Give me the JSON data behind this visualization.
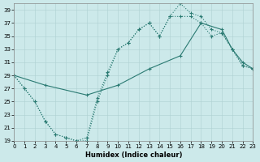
{
  "xlabel": "Humidex (Indice chaleur)",
  "bg_color": "#cce9ea",
  "line_color": "#2a7a72",
  "grid_color": "#aed0d2",
  "xlim": [
    0,
    23
  ],
  "ylim": [
    19,
    40
  ],
  "yticks": [
    19,
    21,
    23,
    25,
    27,
    29,
    31,
    33,
    35,
    37,
    39
  ],
  "xticks": [
    0,
    1,
    2,
    3,
    4,
    5,
    6,
    7,
    8,
    9,
    10,
    11,
    12,
    13,
    14,
    15,
    16,
    17,
    18,
    19,
    20,
    21,
    22,
    23
  ],
  "line1_x": [
    0,
    1,
    2,
    3,
    4,
    5,
    6,
    7,
    8,
    9,
    10,
    11,
    12,
    13,
    14,
    15,
    16,
    17,
    18,
    19,
    20,
    21,
    22,
    23
  ],
  "line1_y": [
    29,
    27,
    25,
    22,
    20,
    19.5,
    19,
    19,
    25,
    29,
    33,
    34,
    36,
    37,
    35,
    38,
    40,
    38.5,
    38,
    36,
    35.5,
    33,
    30.5,
    30
  ],
  "line2_x": [
    0,
    1,
    2,
    3,
    4,
    5,
    6,
    7,
    8,
    9,
    10,
    11,
    12,
    13,
    14,
    15,
    16,
    17,
    18,
    19,
    20,
    21,
    22,
    23
  ],
  "line2_y": [
    29,
    27,
    25,
    22,
    20,
    19.5,
    19,
    19.5,
    25.5,
    29.5,
    33,
    34,
    36,
    37,
    35,
    38,
    38,
    38,
    37,
    35,
    35.5,
    33,
    30.5,
    30
  ],
  "line3_x": [
    0,
    3,
    7,
    10,
    13,
    16,
    18,
    20,
    21,
    22,
    23
  ],
  "line3_y": [
    29,
    27.5,
    26,
    27.5,
    30,
    32,
    37,
    36,
    33,
    31,
    30
  ]
}
